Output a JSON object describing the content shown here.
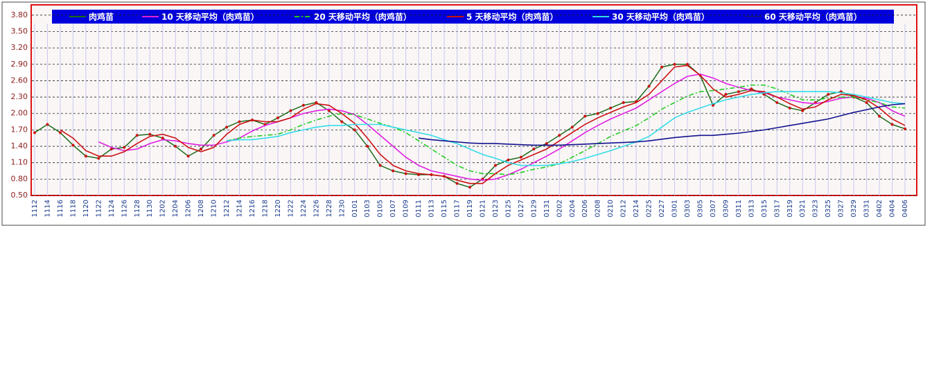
{
  "chart_data": {
    "type": "line",
    "categories": [
      "1112",
      "1114",
      "1116",
      "1118",
      "1120",
      "1122",
      "1124",
      "1126",
      "1128",
      "1130",
      "1202",
      "1204",
      "1206",
      "1208",
      "1210",
      "1212",
      "1214",
      "1216",
      "1218",
      "1220",
      "1222",
      "1224",
      "1226",
      "1228",
      "1230",
      "0101",
      "0103",
      "0105",
      "0107",
      "0109",
      "0111",
      "0113",
      "0115",
      "0117",
      "0119",
      "0121",
      "0123",
      "0125",
      "0127",
      "0129",
      "0131",
      "0202",
      "0204",
      "0206",
      "0208",
      "0210",
      "0212",
      "0214",
      "0225",
      "0227",
      "0301",
      "0303",
      "0305",
      "0307",
      "0309",
      "0311",
      "0313",
      "0315",
      "0317",
      "0319",
      "0321",
      "0323",
      "0325",
      "0327",
      "0329",
      "0331",
      "0402",
      "0404",
      "0406"
    ],
    "series": [
      {
        "name": "肉鸡苗",
        "color": "#1a6b1a",
        "markers": true,
        "marker_color": "#cc1111",
        "style": "solid",
        "values": [
          1.65,
          1.8,
          1.65,
          1.42,
          1.22,
          1.18,
          1.35,
          1.38,
          1.6,
          1.62,
          1.55,
          1.4,
          1.22,
          1.35,
          1.6,
          1.75,
          1.85,
          1.88,
          1.8,
          1.92,
          2.05,
          2.15,
          2.2,
          2.05,
          1.85,
          1.7,
          1.4,
          1.05,
          0.95,
          0.9,
          0.88,
          0.88,
          0.85,
          0.72,
          0.65,
          0.8,
          1.05,
          1.15,
          1.2,
          1.35,
          1.45,
          1.6,
          1.75,
          1.95,
          2.0,
          2.1,
          2.2,
          2.22,
          2.5,
          2.85,
          2.9,
          2.9,
          2.7,
          2.15,
          2.35,
          2.4,
          2.45,
          2.35,
          2.2,
          2.1,
          2.05,
          2.2,
          2.35,
          2.4,
          2.3,
          2.2,
          1.95,
          1.8,
          1.72
        ]
      },
      {
        "name": "10 天移动平均（肉鸡苗）",
        "color": "#e020e0",
        "markers": false,
        "style": "solid",
        "values": [
          null,
          null,
          null,
          null,
          null,
          1.48,
          1.38,
          1.32,
          1.35,
          1.45,
          1.52,
          1.5,
          1.45,
          1.42,
          1.42,
          1.48,
          1.55,
          1.68,
          1.78,
          1.85,
          1.92,
          2.0,
          2.05,
          2.08,
          2.05,
          1.98,
          1.8,
          1.6,
          1.4,
          1.2,
          1.05,
          0.95,
          0.9,
          0.85,
          0.8,
          0.78,
          0.8,
          0.88,
          0.98,
          1.1,
          1.22,
          1.35,
          1.5,
          1.65,
          1.78,
          1.9,
          2.0,
          2.1,
          2.25,
          2.4,
          2.55,
          2.68,
          2.72,
          2.65,
          2.55,
          2.48,
          2.42,
          2.38,
          2.3,
          2.25,
          2.2,
          2.18,
          2.22,
          2.28,
          2.3,
          2.28,
          2.2,
          2.05,
          1.95
        ]
      },
      {
        "name": "20 天移动平均（肉鸡苗）",
        "color": "#22cc22",
        "markers": false,
        "style": "dashdot",
        "values": [
          null,
          null,
          null,
          null,
          null,
          null,
          null,
          null,
          null,
          null,
          null,
          null,
          null,
          null,
          null,
          1.5,
          1.55,
          1.58,
          1.6,
          1.62,
          1.7,
          1.8,
          1.88,
          1.95,
          2.0,
          1.98,
          1.9,
          1.82,
          1.75,
          1.65,
          1.5,
          1.35,
          1.2,
          1.05,
          0.95,
          0.9,
          0.9,
          0.88,
          0.92,
          0.98,
          1.02,
          1.08,
          1.2,
          1.32,
          1.45,
          1.58,
          1.68,
          1.78,
          1.92,
          2.08,
          2.2,
          2.32,
          2.4,
          2.42,
          2.45,
          2.48,
          2.52,
          2.52,
          2.45,
          2.35,
          2.25,
          2.25,
          2.28,
          2.3,
          2.3,
          2.25,
          2.2,
          2.12,
          2.1
        ]
      },
      {
        "name": "5 天移动平均（肉鸡苗）",
        "color": "#cc1111",
        "markers": false,
        "style": "solid",
        "values": [
          null,
          null,
          1.7,
          1.55,
          1.32,
          1.22,
          1.22,
          1.3,
          1.45,
          1.58,
          1.62,
          1.55,
          1.38,
          1.3,
          1.38,
          1.62,
          1.8,
          1.88,
          1.85,
          1.85,
          1.92,
          2.08,
          2.18,
          2.15,
          2.0,
          1.82,
          1.55,
          1.25,
          1.05,
          0.95,
          0.9,
          0.88,
          0.85,
          0.78,
          0.72,
          0.72,
          0.9,
          1.05,
          1.15,
          1.25,
          1.35,
          1.5,
          1.65,
          1.8,
          1.92,
          2.02,
          2.12,
          2.2,
          2.35,
          2.6,
          2.85,
          2.88,
          2.7,
          2.45,
          2.3,
          2.35,
          2.42,
          2.4,
          2.3,
          2.18,
          2.08,
          2.12,
          2.25,
          2.35,
          2.33,
          2.25,
          2.1,
          1.9,
          1.78
        ]
      },
      {
        "name": "30 天移动平均（肉鸡苗）",
        "color": "#33dde8",
        "markers": false,
        "style": "solid",
        "values": [
          null,
          null,
          null,
          null,
          null,
          null,
          null,
          null,
          null,
          null,
          null,
          null,
          null,
          null,
          null,
          1.5,
          1.52,
          1.52,
          1.55,
          1.58,
          1.65,
          1.7,
          1.75,
          1.78,
          1.78,
          1.8,
          1.8,
          1.8,
          1.75,
          1.7,
          1.65,
          1.6,
          1.52,
          1.45,
          1.35,
          1.25,
          1.18,
          1.1,
          1.05,
          1.05,
          1.05,
          1.08,
          1.12,
          1.18,
          1.25,
          1.32,
          1.4,
          1.48,
          1.58,
          1.75,
          1.92,
          2.02,
          2.1,
          2.18,
          2.25,
          2.3,
          2.35,
          2.38,
          2.4,
          2.4,
          2.4,
          2.4,
          2.4,
          2.38,
          2.35,
          2.3,
          2.25,
          2.2,
          2.18
        ]
      },
      {
        "name": "60 天移动平均（肉鸡苗）",
        "color": "#12128f",
        "markers": false,
        "style": "solid",
        "values": [
          null,
          null,
          null,
          null,
          null,
          null,
          null,
          null,
          null,
          null,
          null,
          null,
          null,
          null,
          null,
          null,
          null,
          null,
          null,
          null,
          null,
          null,
          null,
          null,
          null,
          null,
          null,
          null,
          null,
          null,
          1.55,
          1.52,
          1.5,
          1.48,
          1.46,
          1.45,
          1.45,
          1.44,
          1.43,
          1.42,
          1.42,
          1.42,
          1.43,
          1.44,
          1.45,
          1.46,
          1.47,
          1.48,
          1.5,
          1.53,
          1.56,
          1.58,
          1.6,
          1.6,
          1.62,
          1.64,
          1.67,
          1.7,
          1.74,
          1.78,
          1.82,
          1.86,
          1.9,
          1.96,
          2.02,
          2.07,
          2.12,
          2.16,
          2.18
        ]
      }
    ],
    "ylim": [
      0.5,
      3.95
    ],
    "yticks": [
      {
        "value": 0.5,
        "label": "0.50"
      },
      {
        "value": 0.8,
        "label": "0.80"
      },
      {
        "value": 1.1,
        "label": "1.10"
      },
      {
        "value": 1.4,
        "label": "1.40"
      },
      {
        "value": 1.7,
        "label": "1.70"
      },
      {
        "value": 2.0,
        "label": "2.00"
      },
      {
        "value": 2.3,
        "label": "2.30"
      },
      {
        "value": 2.6,
        "label": "2.60"
      },
      {
        "value": 2.9,
        "label": "2.90"
      },
      {
        "value": 3.2,
        "label": "3.20"
      },
      {
        "value": 3.5,
        "label": "3.50"
      },
      {
        "value": 3.8,
        "label": "3.80"
      }
    ],
    "grid": true
  }
}
